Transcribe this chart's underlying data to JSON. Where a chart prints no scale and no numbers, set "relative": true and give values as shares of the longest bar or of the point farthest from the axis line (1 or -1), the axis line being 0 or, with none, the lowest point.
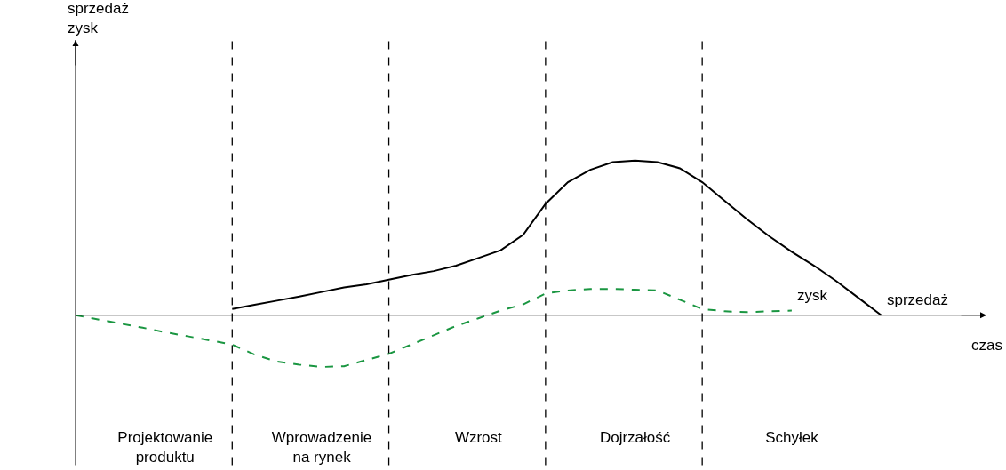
{
  "chart_data": {
    "type": "line",
    "relative": true,
    "xlabel": "czas",
    "tick_labels": "x",
    "grid": "x",
    "legend": false,
    "marker": "none",
    "categories": [
      null,
      null,
      null,
      null,
      "Projektowanie\nproduktu",
      null,
      null,
      null,
      null,
      null,
      null,
      "Wprowadzenie\nna rynek",
      null,
      null,
      null,
      null,
      null,
      null,
      "Wzrost",
      null,
      null,
      null,
      null,
      null,
      null,
      "Dojrzałość",
      null,
      null,
      null,
      null,
      null,
      null,
      "Schyłek",
      null,
      null,
      null,
      null,
      null,
      null,
      null,
      null
    ],
    "series": [
      {
        "name": "sprzedaż",
        "color": "#000000",
        "line_style": "solid",
        "values": [
          null,
          null,
          null,
          null,
          null,
          null,
          null,
          0.04,
          0.067,
          0.094,
          0.12,
          0.15,
          0.18,
          0.2,
          0.23,
          0.26,
          0.285,
          0.32,
          0.37,
          0.42,
          0.52,
          0.72,
          0.86,
          0.94,
          0.99,
          1.0,
          0.99,
          0.95,
          0.86,
          0.74,
          0.62,
          0.51,
          0.41,
          0.32,
          0.22,
          0.11,
          0,
          null,
          null,
          null,
          null
        ]
      },
      {
        "name": "zysk",
        "color": "#1a9641",
        "line_style": "dashed",
        "values": [
          0,
          -0.027,
          -0.054,
          -0.081,
          -0.11,
          -0.136,
          -0.163,
          -0.19,
          -0.255,
          -0.3,
          -0.32,
          -0.335,
          -0.33,
          -0.29,
          -0.25,
          -0.19,
          -0.13,
          -0.07,
          -0.02,
          0.03,
          0.07,
          0.14,
          0.16,
          0.17,
          0.17,
          0.165,
          0.16,
          0.1,
          0.04,
          0.025,
          0.02,
          0.025,
          0.03,
          null,
          null,
          null,
          null,
          null,
          null,
          null,
          null
        ]
      }
    ],
    "annotations": [
      "sprzedaż\nzysk"
    ]
  }
}
